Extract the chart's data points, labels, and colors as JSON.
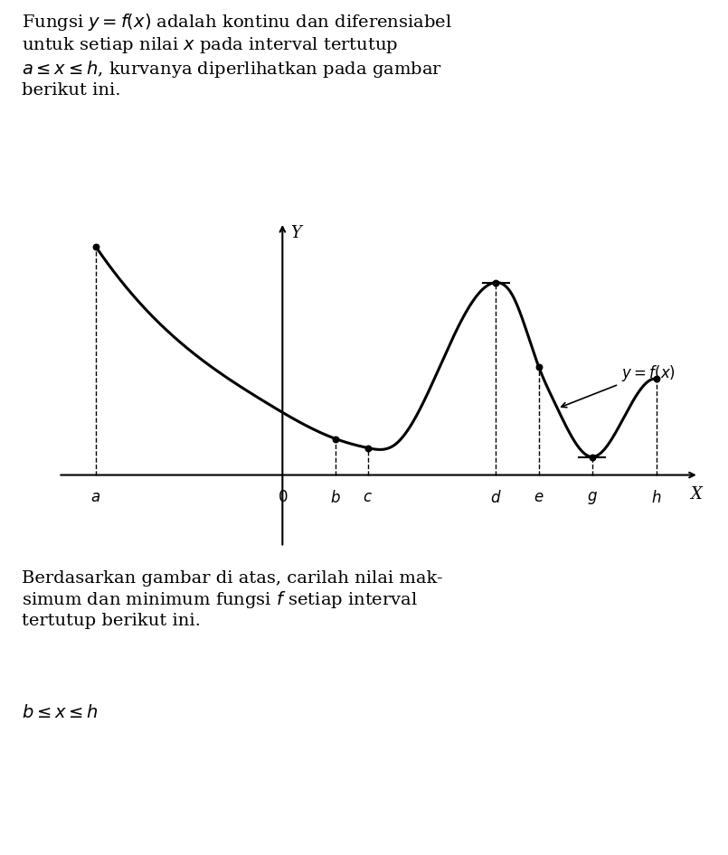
{
  "title_text": "Fungsi $y=f(x)$ adalah kontinu dan diferensiabel\nuntuk setiap nilai $x$ pada interval tertutup\n$a \\leq x \\leq h$, kurvanya diperlihatkan pada gambar\nberikut ini.",
  "bottom_text1": "Berdasarkan gambar di atas, carilah nilai mak-\nsimum dan minimum fungsi $f$ setiap interval\ntertutup berikut ini.",
  "bottom_text2": "$b \\leq x \\leq h$",
  "xlabel": "X",
  "ylabel": "Y",
  "label_curve": "$y=f(x)$",
  "x_labels": [
    "a",
    "0",
    "b",
    "c",
    "d",
    "e",
    "g",
    "h"
  ],
  "background_color": "#ffffff",
  "curve_color": "#000000",
  "dashed_color": "#000000",
  "dot_color": "#000000",
  "font_color": "#000000"
}
